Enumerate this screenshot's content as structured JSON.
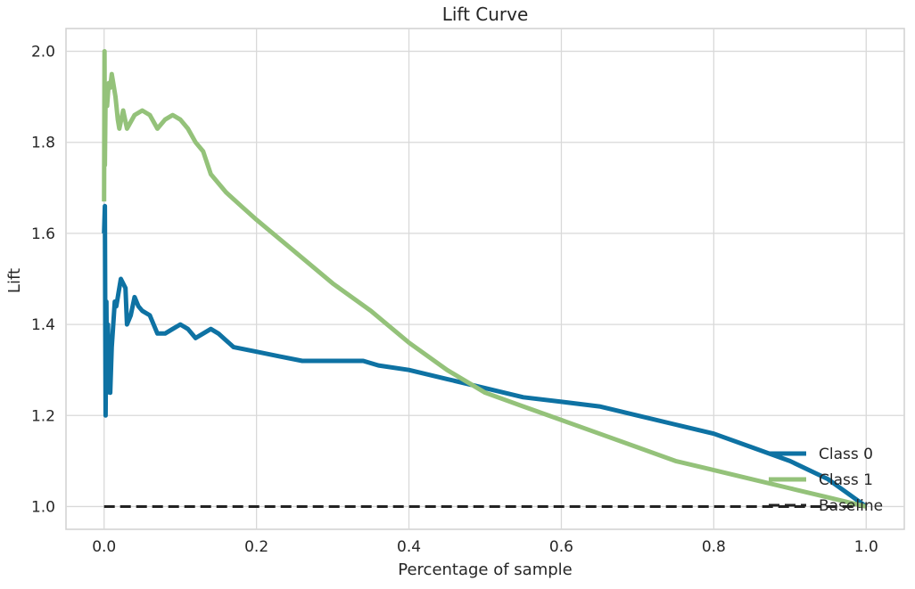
{
  "chart_data": {
    "type": "line",
    "title": "Lift Curve",
    "xlabel": "Percentage of sample",
    "ylabel": "Lift",
    "xlim": [
      -0.05,
      1.05
    ],
    "ylim": [
      0.95,
      2.05
    ],
    "xticks": [
      "0.0",
      "0.2",
      "0.4",
      "0.6",
      "0.8",
      "1.0"
    ],
    "xtick_values": [
      0.0,
      0.2,
      0.4,
      0.6,
      0.8,
      1.0
    ],
    "yticks": [
      "1.0",
      "1.2",
      "1.4",
      "1.6",
      "1.8",
      "2.0"
    ],
    "ytick_values": [
      1.0,
      1.2,
      1.4,
      1.6,
      1.8,
      2.0
    ],
    "grid": true,
    "legend_position": "lower-right",
    "series": [
      {
        "name": "Class 0",
        "color": "#0e72a3",
        "dash": "solid",
        "x": [
          0.0,
          0.001,
          0.002,
          0.003,
          0.004,
          0.005,
          0.006,
          0.008,
          0.01,
          0.012,
          0.014,
          0.016,
          0.02,
          0.022,
          0.025,
          0.028,
          0.03,
          0.035,
          0.04,
          0.045,
          0.05,
          0.06,
          0.07,
          0.08,
          0.09,
          0.1,
          0.11,
          0.12,
          0.13,
          0.14,
          0.15,
          0.17,
          0.2,
          0.23,
          0.26,
          0.3,
          0.34,
          0.36,
          0.4,
          0.45,
          0.5,
          0.55,
          0.6,
          0.65,
          0.7,
          0.75,
          0.8,
          0.85,
          0.9,
          0.95,
          1.0
        ],
        "y": [
          1.6,
          1.66,
          1.2,
          1.45,
          1.25,
          1.4,
          1.3,
          1.25,
          1.35,
          1.4,
          1.45,
          1.44,
          1.48,
          1.5,
          1.49,
          1.48,
          1.4,
          1.42,
          1.46,
          1.44,
          1.43,
          1.42,
          1.38,
          1.38,
          1.39,
          1.4,
          1.39,
          1.37,
          1.38,
          1.39,
          1.38,
          1.35,
          1.34,
          1.33,
          1.32,
          1.32,
          1.32,
          1.31,
          1.3,
          1.28,
          1.26,
          1.24,
          1.23,
          1.22,
          1.2,
          1.18,
          1.16,
          1.13,
          1.1,
          1.06,
          1.0
        ]
      },
      {
        "name": "Class 1",
        "color": "#94c27a",
        "dash": "solid",
        "x": [
          0.0,
          0.0005,
          0.001,
          0.002,
          0.004,
          0.006,
          0.008,
          0.01,
          0.012,
          0.015,
          0.018,
          0.02,
          0.025,
          0.03,
          0.04,
          0.05,
          0.06,
          0.07,
          0.08,
          0.09,
          0.1,
          0.11,
          0.12,
          0.13,
          0.14,
          0.16,
          0.18,
          0.2,
          0.25,
          0.3,
          0.35,
          0.4,
          0.45,
          0.5,
          0.55,
          0.6,
          0.65,
          0.7,
          0.75,
          0.8,
          0.85,
          0.9,
          0.95,
          1.0
        ],
        "y": [
          1.67,
          2.0,
          1.75,
          1.9,
          1.88,
          1.93,
          1.92,
          1.95,
          1.93,
          1.9,
          1.85,
          1.83,
          1.87,
          1.83,
          1.86,
          1.87,
          1.86,
          1.83,
          1.85,
          1.86,
          1.85,
          1.83,
          1.8,
          1.78,
          1.73,
          1.69,
          1.66,
          1.63,
          1.56,
          1.49,
          1.43,
          1.36,
          1.3,
          1.25,
          1.22,
          1.19,
          1.16,
          1.13,
          1.1,
          1.08,
          1.06,
          1.04,
          1.02,
          1.0
        ]
      },
      {
        "name": "Baseline",
        "color": "#222222",
        "dash": "dashed",
        "x": [
          0.0,
          1.0
        ],
        "y": [
          1.0,
          1.0
        ]
      }
    ]
  }
}
